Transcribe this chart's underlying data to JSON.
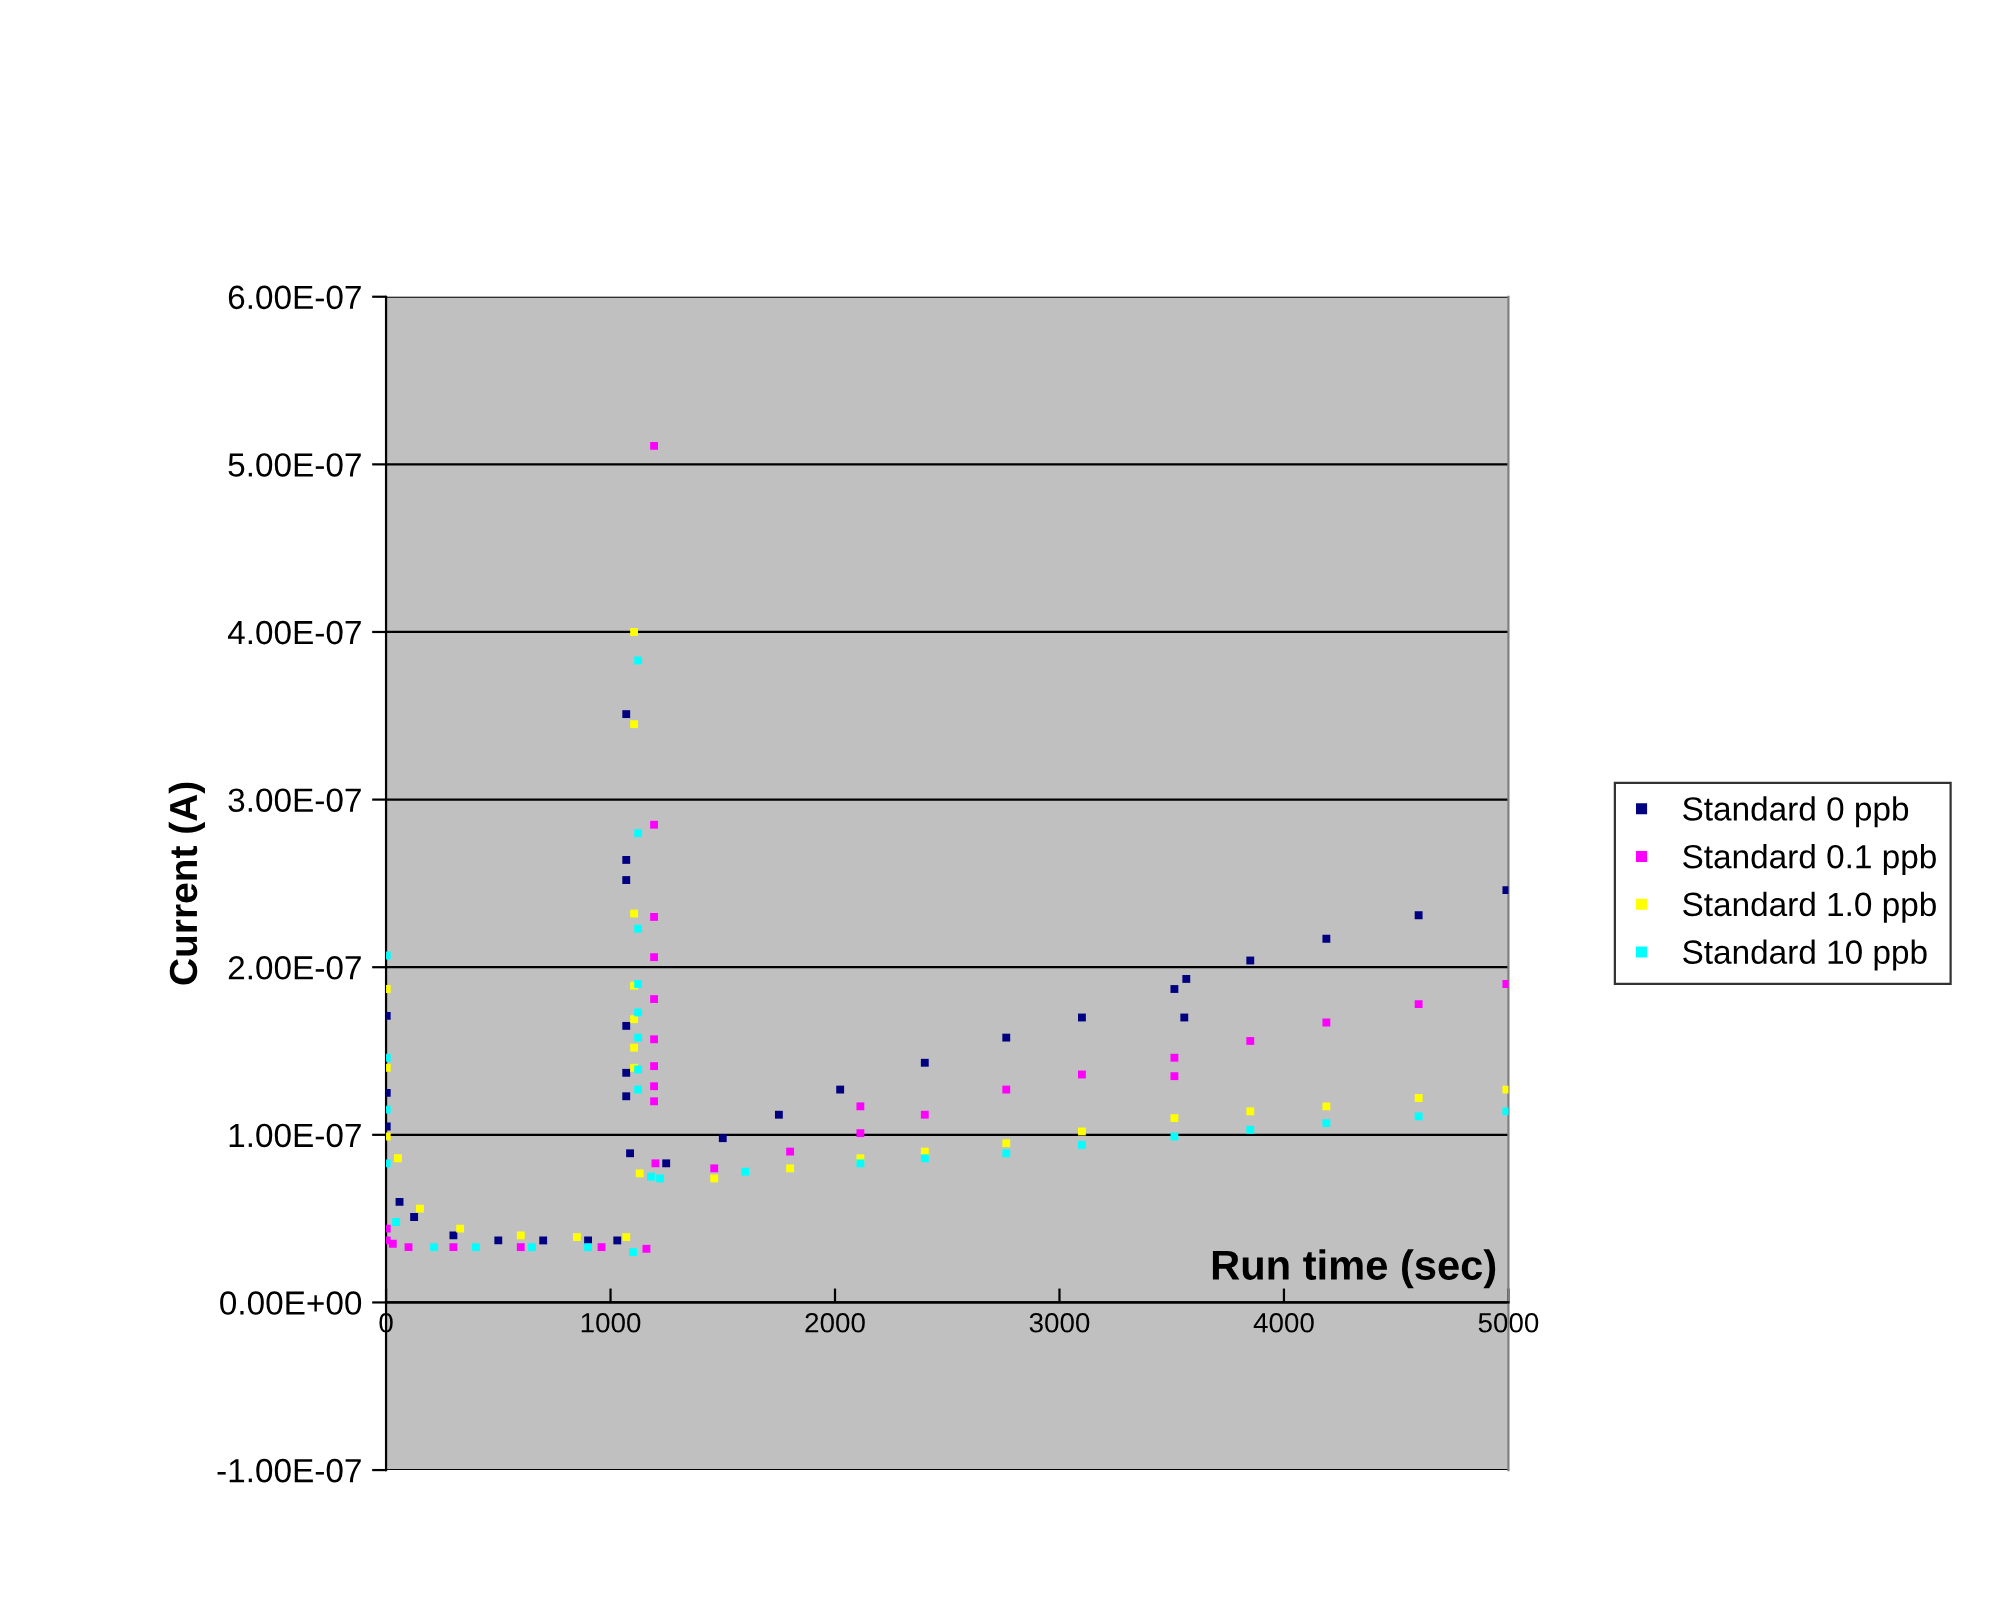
{
  "chart_data": {
    "type": "scatter",
    "xlabel": "Run time (sec)",
    "ylabel": "Current (A)",
    "xlim": [
      0,
      5000
    ],
    "xticks": [
      0,
      1000,
      2000,
      3000,
      4000,
      5000
    ],
    "ylim": [
      -1e-07,
      6e-07
    ],
    "yticks": [
      {
        "value": -1e-07,
        "label": "-1.00E-07"
      },
      {
        "value": 0,
        "label": "0.00E+00"
      },
      {
        "value": 1e-07,
        "label": "1.00E-07"
      },
      {
        "value": 2e-07,
        "label": "2.00E-07"
      },
      {
        "value": 3e-07,
        "label": "3.00E-07"
      },
      {
        "value": 4e-07,
        "label": "4.00E-07"
      },
      {
        "value": 5e-07,
        "label": "5.00E-07"
      },
      {
        "value": 6e-07,
        "label": "6.00E-07"
      }
    ],
    "grid": "y",
    "legend": "right",
    "marker": "square",
    "series": [
      {
        "name": "Standard 0 ppb",
        "color": "#000080",
        "x": [
          3,
          3,
          3,
          60,
          125,
          300,
          500,
          700,
          900,
          1030,
          1070,
          1070,
          1070,
          1070,
          1070,
          1070,
          1087,
          1248,
          1500,
          1750,
          2023,
          2400,
          2763,
          3100,
          3512,
          3556,
          3565,
          3850,
          4189,
          4600,
          4991
        ],
        "values": [
          1.71e-07,
          1.25e-07,
          1.05e-07,
          6e-08,
          5.1e-08,
          4e-08,
          3.7e-08,
          3.7e-08,
          3.7e-08,
          3.7e-08,
          3.51e-07,
          2.64e-07,
          2.52e-07,
          1.65e-07,
          1.37e-07,
          1.23e-07,
          8.9e-08,
          8.3e-08,
          9.8e-08,
          1.12e-07,
          1.27e-07,
          1.43e-07,
          1.58e-07,
          1.7e-07,
          1.87e-07,
          1.7e-07,
          1.93e-07,
          2.04e-07,
          2.17e-07,
          2.31e-07,
          2.46e-07
        ]
      },
      {
        "name": "Standard 0.1 ppb",
        "color": "#ff00ff",
        "x": [
          3,
          3,
          30,
          100,
          300,
          600,
          960,
          1160,
          1194,
          1194,
          1194,
          1194,
          1194,
          1194,
          1194,
          1194,
          1194,
          1200,
          1462,
          1800,
          2113,
          2113,
          2400,
          2763,
          3100,
          3512,
          3512,
          3850,
          4189,
          4600,
          4991
        ],
        "values": [
          4.4e-08,
          3.7e-08,
          3.5e-08,
          3.3e-08,
          3.3e-08,
          3.3e-08,
          3.3e-08,
          3.2e-08,
          5.11e-07,
          2.85e-07,
          2.3e-07,
          2.06e-07,
          1.81e-07,
          1.57e-07,
          1.41e-07,
          1.29e-07,
          1.2e-07,
          8.3e-08,
          8e-08,
          9e-08,
          1.01e-07,
          1.17e-07,
          1.12e-07,
          1.27e-07,
          1.36e-07,
          1.46e-07,
          1.35e-07,
          1.56e-07,
          1.67e-07,
          1.78e-07,
          1.9e-07
        ]
      },
      {
        "name": "Standard 1.0 ppb",
        "color": "#ffff00",
        "x": [
          3,
          3,
          3,
          53,
          151,
          330,
          600,
          850,
          1070,
          1105,
          1105,
          1105,
          1105,
          1105,
          1105,
          1105,
          1130,
          1462,
          1800,
          2113,
          2400,
          2763,
          3100,
          3512,
          3850,
          4189,
          4600,
          4991
        ],
        "values": [
          1.87e-07,
          1.4e-07,
          9.9e-08,
          8.6e-08,
          5.6e-08,
          4.4e-08,
          4e-08,
          3.9e-08,
          3.9e-08,
          4e-07,
          3.45e-07,
          2.32e-07,
          1.89e-07,
          1.69e-07,
          1.52e-07,
          1.4e-07,
          7.7e-08,
          7.4e-08,
          8e-08,
          8.6e-08,
          9e-08,
          9.5e-08,
          1.02e-07,
          1.1e-07,
          1.14e-07,
          1.17e-07,
          1.22e-07,
          1.27e-07
        ]
      },
      {
        "name": "Standard 10 ppb",
        "color": "#00ffff",
        "x": [
          3,
          3,
          3,
          3,
          45,
          214,
          400,
          650,
          900,
          1100,
          1123,
          1123,
          1123,
          1123,
          1123,
          1123,
          1123,
          1123,
          1180,
          1221,
          1600,
          2113,
          2400,
          2763,
          3100,
          3512,
          3850,
          4189,
          4600,
          4991
        ],
        "values": [
          2.07e-07,
          1.46e-07,
          1.15e-07,
          8.3e-08,
          4.8e-08,
          3.3e-08,
          3.3e-08,
          3.3e-08,
          3.3e-08,
          3e-08,
          3.83e-07,
          2.8e-07,
          2.23e-07,
          1.9e-07,
          1.73e-07,
          1.58e-07,
          1.39e-07,
          1.27e-07,
          7.5e-08,
          7.4e-08,
          7.8e-08,
          8.3e-08,
          8.6e-08,
          8.9e-08,
          9.4e-08,
          9.9e-08,
          1.03e-07,
          1.07e-07,
          1.11e-07,
          1.14e-07
        ]
      }
    ]
  }
}
